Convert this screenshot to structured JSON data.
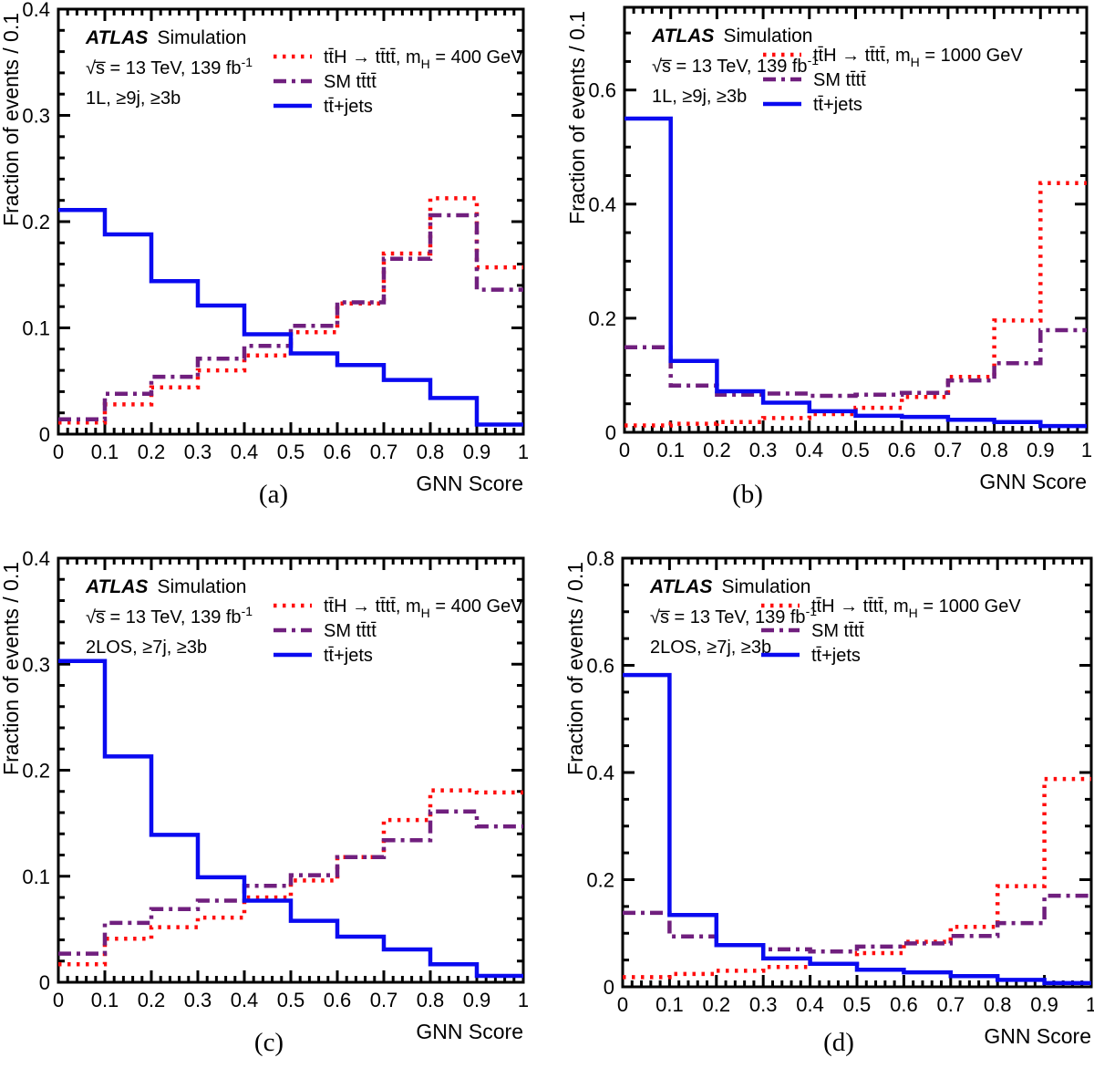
{
  "figure": {
    "experiment": "ATLAS",
    "experiment_qualifier": "Simulation",
    "lumi": {
      "pre": "√s̅ = 13 TeV, 139 fb",
      "sup": "-1"
    },
    "xlabel": "GNN Score",
    "ylabel": "Fraction of events / 0.1",
    "colors": {
      "signal": "#ff0d0d",
      "sm": "#701f7e",
      "ttjets": "#0a0af0",
      "axis": "#000000",
      "background": "#ffffff"
    }
  },
  "chart_data": [
    {
      "type": "step-histogram",
      "caption": "(a)",
      "selection": "1L, ≥9j, ≥3b",
      "x": {
        "min": 0,
        "max": 1,
        "major": 0.1,
        "minor": 0.02,
        "labels": [
          "0",
          "0.1",
          "0.2",
          "0.3",
          "0.4",
          "0.5",
          "0.6",
          "0.7",
          "0.8",
          "0.9",
          "1"
        ],
        "title": "GNN Score"
      },
      "y": {
        "min": 0,
        "max": 0.4,
        "major": 0.1,
        "minor": 0.02,
        "labels": [
          "0",
          "0.1",
          "0.2",
          "0.3",
          "0.4"
        ],
        "title": "Fraction of events / 0.1"
      },
      "series": [
        {
          "key": "signal",
          "style": "dotted",
          "legend": {
            "pre": "tt̄H → tt̄tt̄, m",
            "sub": "H",
            "post": " = 400 GeV"
          },
          "values": [
            0.011,
            0.028,
            0.044,
            0.06,
            0.074,
            0.096,
            0.123,
            0.17,
            0.222,
            0.157
          ]
        },
        {
          "key": "sm",
          "style": "dashdot",
          "legend": {
            "pre": "SM tt̄tt̄",
            "sub": "",
            "post": ""
          },
          "values": [
            0.014,
            0.038,
            0.054,
            0.071,
            0.083,
            0.102,
            0.124,
            0.165,
            0.206,
            0.136
          ]
        },
        {
          "key": "ttjets",
          "style": "solid",
          "legend": {
            "pre": "tt̄+jets",
            "sub": "",
            "post": ""
          },
          "values": [
            0.211,
            0.188,
            0.144,
            0.121,
            0.094,
            0.076,
            0.065,
            0.051,
            0.034,
            0.009
          ]
        }
      ]
    },
    {
      "type": "step-histogram",
      "caption": "(b)",
      "selection": "1L, ≥9j, ≥3b",
      "x": {
        "min": 0,
        "max": 1,
        "major": 0.1,
        "minor": 0.02,
        "labels": [
          "0",
          "0.1",
          "0.2",
          "0.3",
          "0.4",
          "0.5",
          "0.6",
          "0.7",
          "0.8",
          "0.9",
          "1"
        ],
        "title": "GNN Score"
      },
      "y": {
        "min": 0,
        "max": 0.745,
        "major": 0.2,
        "minor": 0.05,
        "labels": [
          "0",
          "0.2",
          "0.4",
          "0.6"
        ],
        "title": "Fraction of events / 0.1"
      },
      "series": [
        {
          "key": "signal",
          "style": "dotted",
          "legend": {
            "pre": "tt̄H → tt̄tt̄, m",
            "sub": "H",
            "post": " = 1000 GeV"
          },
          "values": [
            0.012,
            0.015,
            0.018,
            0.025,
            0.032,
            0.043,
            0.062,
            0.097,
            0.196,
            0.437
          ]
        },
        {
          "key": "sm",
          "style": "dashdot",
          "legend": {
            "pre": "SM tt̄tt̄",
            "sub": "",
            "post": ""
          },
          "values": [
            0.149,
            0.082,
            0.066,
            0.068,
            0.064,
            0.066,
            0.069,
            0.091,
            0.121,
            0.179
          ]
        },
        {
          "key": "ttjets",
          "style": "solid",
          "legend": {
            "pre": "tt̄+jets",
            "sub": "",
            "post": ""
          },
          "values": [
            0.55,
            0.125,
            0.072,
            0.052,
            0.037,
            0.029,
            0.027,
            0.022,
            0.018,
            0.011
          ]
        }
      ]
    },
    {
      "type": "step-histogram",
      "caption": "(c)",
      "selection": "2LOS, ≥7j, ≥3b",
      "x": {
        "min": 0,
        "max": 1,
        "major": 0.1,
        "minor": 0.02,
        "labels": [
          "0",
          "0.1",
          "0.2",
          "0.3",
          "0.4",
          "0.5",
          "0.6",
          "0.7",
          "0.8",
          "0.9",
          "1"
        ],
        "title": "GNN Score"
      },
      "y": {
        "min": 0,
        "max": 0.4,
        "major": 0.1,
        "minor": 0.02,
        "labels": [
          "0",
          "0.1",
          "0.2",
          "0.3",
          "0.4"
        ],
        "title": "Fraction of events / 0.1"
      },
      "series": [
        {
          "key": "signal",
          "style": "dotted",
          "legend": {
            "pre": "tt̄H → tt̄tt̄, m",
            "sub": "H",
            "post": " = 400 GeV"
          },
          "values": [
            0.017,
            0.041,
            0.052,
            0.061,
            0.08,
            0.096,
            0.118,
            0.153,
            0.181,
            0.179
          ]
        },
        {
          "key": "sm",
          "style": "dashdot",
          "legend": {
            "pre": "SM tt̄tt̄",
            "sub": "",
            "post": ""
          },
          "values": [
            0.027,
            0.056,
            0.069,
            0.077,
            0.091,
            0.101,
            0.118,
            0.134,
            0.161,
            0.147
          ]
        },
        {
          "key": "ttjets",
          "style": "solid",
          "legend": {
            "pre": "tt̄+jets",
            "sub": "",
            "post": ""
          },
          "values": [
            0.303,
            0.213,
            0.139,
            0.099,
            0.077,
            0.058,
            0.043,
            0.031,
            0.017,
            0.006
          ]
        }
      ]
    },
    {
      "type": "step-histogram",
      "caption": "(d)",
      "selection": "2LOS, ≥7j, ≥3b",
      "x": {
        "min": 0,
        "max": 1,
        "major": 0.1,
        "minor": 0.02,
        "labels": [
          "0",
          "0.1",
          "0.2",
          "0.3",
          "0.4",
          "0.5",
          "0.6",
          "0.7",
          "0.8",
          "0.9",
          "1"
        ],
        "title": "GNN Score"
      },
      "y": {
        "min": 0,
        "max": 0.8,
        "major": 0.2,
        "minor": 0.05,
        "labels": [
          "0",
          "0.2",
          "0.4",
          "0.6",
          "0.8"
        ],
        "title": "Fraction of events / 0.1"
      },
      "series": [
        {
          "key": "signal",
          "style": "dotted",
          "legend": {
            "pre": "tt̄H → tt̄tt̄, m",
            "sub": "H",
            "post": " = 1000 GeV"
          },
          "values": [
            0.018,
            0.024,
            0.03,
            0.037,
            0.043,
            0.063,
            0.084,
            0.112,
            0.188,
            0.388
          ]
        },
        {
          "key": "sm",
          "style": "dashdot",
          "legend": {
            "pre": "SM tt̄tt̄",
            "sub": "",
            "post": ""
          },
          "values": [
            0.138,
            0.094,
            0.078,
            0.07,
            0.066,
            0.075,
            0.081,
            0.095,
            0.119,
            0.17
          ]
        },
        {
          "key": "ttjets",
          "style": "solid",
          "legend": {
            "pre": "tt̄+jets",
            "sub": "",
            "post": ""
          },
          "values": [
            0.582,
            0.134,
            0.078,
            0.053,
            0.043,
            0.032,
            0.027,
            0.02,
            0.013,
            0.007
          ]
        }
      ]
    }
  ]
}
